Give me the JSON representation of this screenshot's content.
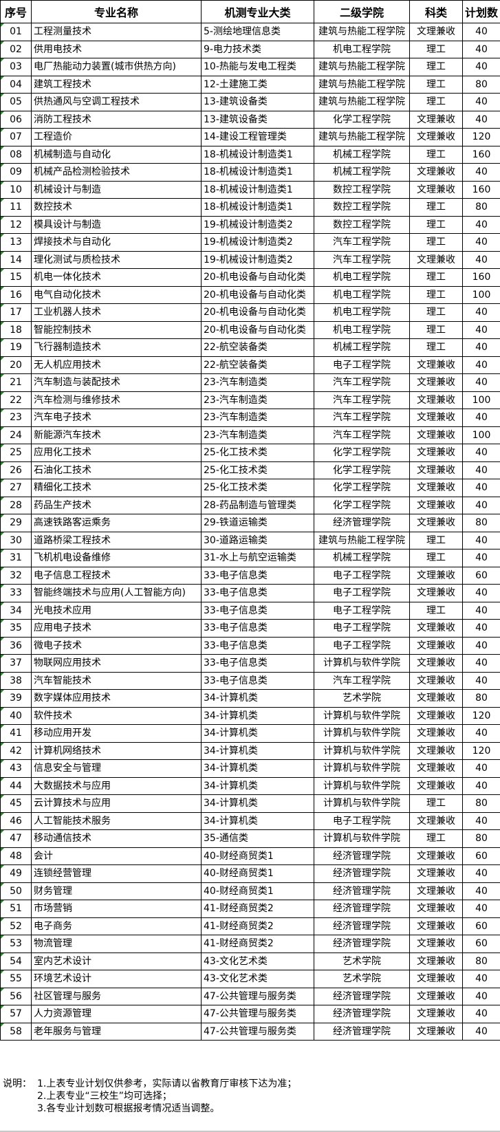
{
  "headers": [
    "序号",
    "专业名称",
    "机测专业大类",
    "二级学院",
    "科类",
    "计划数"
  ],
  "rows": [
    [
      "01",
      "工程测量技术",
      "5-测绘地理信息类",
      "建筑与热能工程学院",
      "文理兼收",
      "40"
    ],
    [
      "02",
      "供用电技术",
      "9-电力技术类",
      "机电工程学院",
      "理工",
      "40"
    ],
    [
      "03",
      "电厂热能动力装置(城市供热方向)",
      "10-热能与发电工程类",
      "建筑与热能工程学院",
      "理工",
      "40"
    ],
    [
      "04",
      "建筑工程技术",
      "12-土建施工类",
      "建筑与热能工程学院",
      "理工",
      "80"
    ],
    [
      "05",
      "供热通风与空调工程技术",
      "13-建筑设备类",
      "建筑与热能工程学院",
      "理工",
      "40"
    ],
    [
      "06",
      "消防工程技术",
      "13-建筑设备类",
      "化学工程学院",
      "文理兼收",
      "40"
    ],
    [
      "07",
      "工程造价",
      "14-建设工程管理类",
      "建筑与热能工程学院",
      "文理兼收",
      "120"
    ],
    [
      "08",
      "机械制造与自动化",
      "18-机械设计制造类1",
      "机械工程学院",
      "理工",
      "160"
    ],
    [
      "09",
      "机械产品检测检验技术",
      "18-机械设计制造类1",
      "机械工程学院",
      "文理兼收",
      "40"
    ],
    [
      "10",
      "机械设计与制造",
      "18-机械设计制造类1",
      "数控工程学院",
      "文理兼收",
      "160"
    ],
    [
      "11",
      "数控技术",
      "18-机械设计制造类1",
      "数控工程学院",
      "理工",
      "80"
    ],
    [
      "12",
      "模具设计与制造",
      "19-机械设计制造类2",
      "数控工程学院",
      "理工",
      "40"
    ],
    [
      "13",
      "焊接技术与自动化",
      "19-机械设计制造类2",
      "汽车工程学院",
      "理工",
      "40"
    ],
    [
      "14",
      "理化测试与质检技术",
      "19-机械设计制造类2",
      "汽车工程学院",
      "文理兼收",
      "40"
    ],
    [
      "15",
      "机电一体化技术",
      "20-机电设备与自动化类",
      "机电工程学院",
      "理工",
      "160"
    ],
    [
      "16",
      "电气自动化技术",
      "20-机电设备与自动化类",
      "机电工程学院",
      "理工",
      "100"
    ],
    [
      "17",
      "工业机器人技术",
      "20-机电设备与自动化类",
      "机电工程学院",
      "理工",
      "40"
    ],
    [
      "18",
      "智能控制技术",
      "20-机电设备与自动化类",
      "机电工程学院",
      "理工",
      "40"
    ],
    [
      "19",
      "飞行器制造技术",
      "22-航空装备类",
      "机械工程学院",
      "理工",
      "40"
    ],
    [
      "20",
      "无人机应用技术",
      "22-航空装备类",
      "电子工程学院",
      "文理兼收",
      "40"
    ],
    [
      "21",
      "汽车制造与装配技术",
      "23-汽车制造类",
      "汽车工程学院",
      "文理兼收",
      "40"
    ],
    [
      "22",
      "汽车检测与维修技术",
      "23-汽车制造类",
      "汽车工程学院",
      "文理兼收",
      "100"
    ],
    [
      "23",
      "汽车电子技术",
      "23-汽车制造类",
      "汽车工程学院",
      "文理兼收",
      "40"
    ],
    [
      "24",
      "新能源汽车技术",
      "23-汽车制造类",
      "汽车工程学院",
      "文理兼收",
      "100"
    ],
    [
      "25",
      "应用化工技术",
      "25-化工技术类",
      "化学工程学院",
      "文理兼收",
      "40"
    ],
    [
      "26",
      "石油化工技术",
      "25-化工技术类",
      "化学工程学院",
      "文理兼收",
      "40"
    ],
    [
      "27",
      "精细化工技术",
      "25-化工技术类",
      "化学工程学院",
      "文理兼收",
      "40"
    ],
    [
      "28",
      "药品生产技术",
      "28-药品制造与管理类",
      "化学工程学院",
      "文理兼收",
      "40"
    ],
    [
      "29",
      "高速铁路客运乘务",
      "29-铁道运输类",
      "经济管理学院",
      "文理兼收",
      "80"
    ],
    [
      "30",
      "道路桥梁工程技术",
      "30-道路运输类",
      "建筑与热能工程学院",
      "理工",
      "40"
    ],
    [
      "31",
      "飞机机电设备维修",
      "31-水上与航空运输类",
      "机械工程学院",
      "理工",
      "40"
    ],
    [
      "32",
      "电子信息工程技术",
      "33-电子信息类",
      "电子工程学院",
      "文理兼收",
      "60"
    ],
    [
      "33",
      "智能终端技术与应用(人工智能方向)",
      "33-电子信息类",
      "电子工程学院",
      "文理兼收",
      "40"
    ],
    [
      "34",
      "光电技术应用",
      "33-电子信息类",
      "电子工程学院",
      "理工",
      "40"
    ],
    [
      "35",
      "应用电子技术",
      "33-电子信息类",
      "电子工程学院",
      "文理兼收",
      "40"
    ],
    [
      "36",
      "微电子技术",
      "33-电子信息类",
      "电子工程学院",
      "文理兼收",
      "40"
    ],
    [
      "37",
      "物联网应用技术",
      "33-电子信息类",
      "计算机与软件学院",
      "文理兼收",
      "40"
    ],
    [
      "38",
      "汽车智能技术",
      "33-电子信息类",
      "汽车工程学院",
      "文理兼收",
      "40"
    ],
    [
      "39",
      "数字媒体应用技术",
      "34-计算机类",
      "艺术学院",
      "文理兼收",
      "80"
    ],
    [
      "40",
      "软件技术",
      "34-计算机类",
      "计算机与软件学院",
      "文理兼收",
      "120"
    ],
    [
      "41",
      "移动应用开发",
      "34-计算机类",
      "计算机与软件学院",
      "文理兼收",
      "40"
    ],
    [
      "42",
      "计算机网络技术",
      "34-计算机类",
      "计算机与软件学院",
      "文理兼收",
      "120"
    ],
    [
      "43",
      "信息安全与管理",
      "34-计算机类",
      "计算机与软件学院",
      "文理兼收",
      "40"
    ],
    [
      "44",
      "大数据技术与应用",
      "34-计算机类",
      "计算机与软件学院",
      "文理兼收",
      "40"
    ],
    [
      "45",
      "云计算技术与应用",
      "34-计算机类",
      "计算机与软件学院",
      "理工",
      "80"
    ],
    [
      "46",
      "人工智能技术服务",
      "34-计算机类",
      "电子工程学院",
      "文理兼收",
      "40"
    ],
    [
      "47",
      "移动通信技术",
      "35-通信类",
      "计算机与软件学院",
      "理工",
      "80"
    ],
    [
      "48",
      "会计",
      "40-财经商贸类1",
      "经济管理学院",
      "文理兼收",
      "60"
    ],
    [
      "49",
      "连锁经营管理",
      "40-财经商贸类1",
      "经济管理学院",
      "文理兼收",
      "40"
    ],
    [
      "50",
      "财务管理",
      "40-财经商贸类1",
      "经济管理学院",
      "文理兼收",
      "40"
    ],
    [
      "51",
      "市场营销",
      "41-财经商贸类2",
      "经济管理学院",
      "文理兼收",
      "40"
    ],
    [
      "52",
      "电子商务",
      "41-财经商贸类2",
      "经济管理学院",
      "文理兼收",
      "60"
    ],
    [
      "53",
      "物流管理",
      "41-财经商贸类2",
      "经济管理学院",
      "文理兼收",
      "60"
    ],
    [
      "54",
      "室内艺术设计",
      "43-文化艺术类",
      "艺术学院",
      "文理兼收",
      "80"
    ],
    [
      "55",
      "环境艺术设计",
      "43-文化艺术类",
      "艺术学院",
      "文理兼收",
      "40"
    ],
    [
      "56",
      "社区管理与服务",
      "47-公共管理与服务类",
      "经济管理学院",
      "文理兼收",
      "40"
    ],
    [
      "57",
      "人力资源管理",
      "47-公共管理与服务类",
      "经济管理学院",
      "文理兼收",
      "40"
    ],
    [
      "58",
      "老年服务与管理",
      "47-公共管理与服务类",
      "经济管理学院",
      "文理兼收",
      "40"
    ]
  ],
  "notes": {
    "label": "说明：",
    "lines": [
      "1.上表专业计划仅供参考，实际请以省教育厅审核下达为准；",
      "2.上表专业“三校生”均可选择；",
      "3.各专业计划数可根据报考情况适当调整。"
    ]
  },
  "colors": {
    "text_indicator": "#1e8c1e"
  }
}
